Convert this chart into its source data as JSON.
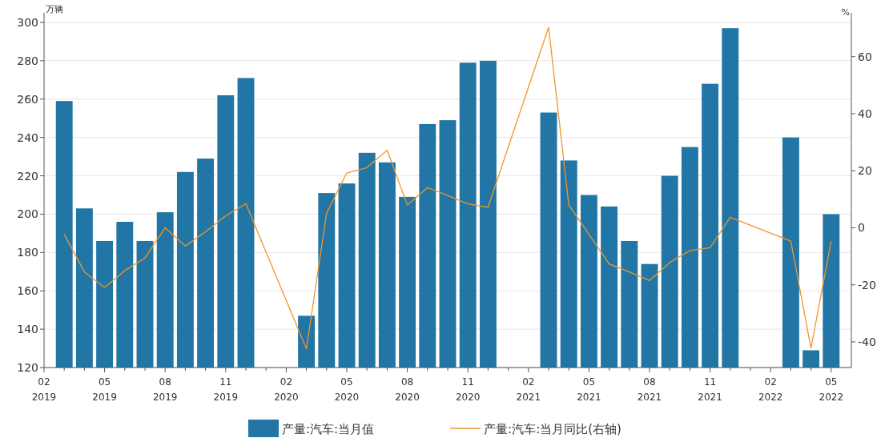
{
  "chart_data": {
    "type": "bar",
    "ylabel": "万辆",
    "y2label": "%",
    "categories": [
      "02 2019",
      null,
      null,
      "05 2019",
      null,
      null,
      "08 2019",
      null,
      null,
      "11 2019",
      null,
      null,
      "02 2020",
      null,
      null,
      "05 2020",
      null,
      null,
      "08 2020",
      null,
      null,
      "11 2020",
      null,
      null,
      "02 2021",
      null,
      null,
      "05 2021",
      null,
      null,
      "08 2021",
      null,
      null,
      "11 2021",
      null,
      null,
      "02 2022",
      null,
      null,
      "05 2022"
    ],
    "series": [
      {
        "name": "产量:汽车:当月值",
        "color": "#2176a5",
        "values": [
          null,
          259,
          203,
          186,
          196,
          186,
          201,
          222,
          229,
          262,
          271,
          null,
          null,
          147,
          211,
          216,
          232,
          227,
          209,
          247,
          249,
          279,
          280,
          null,
          null,
          253,
          228,
          210,
          204,
          186,
          174,
          220,
          235,
          268,
          297,
          null,
          null,
          240,
          129,
          200
        ]
      },
      {
        "name": "产量:汽车:当月同比(右轴)",
        "type": "line",
        "axis": "y2",
        "color": "#f0962a",
        "values": [
          null,
          -2.3,
          -15.5,
          -20.9,
          -15,
          -10.6,
          0,
          -6.4,
          -1.4,
          4.2,
          8.4,
          null,
          null,
          -42.4,
          5.1,
          19.2,
          21.1,
          27.2,
          8,
          14.1,
          11.3,
          8.4,
          7.2,
          null,
          null,
          70.3,
          8,
          -2.3,
          -12.7,
          -15.5,
          -18.5,
          -12.2,
          -8,
          -7,
          3.7,
          null,
          null,
          -4.7,
          -42.2,
          -4.7
        ]
      }
    ],
    "ylim": [
      120,
      300
    ],
    "yticks": [
      120,
      140,
      160,
      180,
      200,
      220,
      240,
      260,
      280,
      300
    ],
    "y2lim": [
      -49,
      72
    ],
    "y2ticks": [
      -40,
      -20,
      0,
      20,
      40,
      60
    ],
    "grid": "y",
    "legend": "bottom"
  }
}
